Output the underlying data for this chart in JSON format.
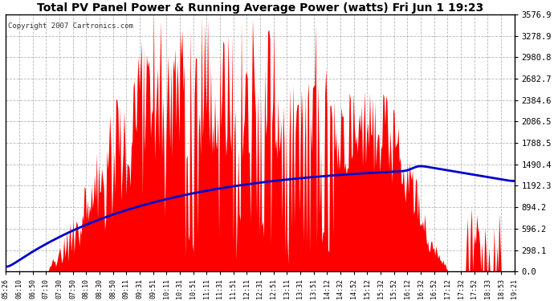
{
  "title": "Total PV Panel Power & Running Average Power (watts) Fri Jun 1 19:23",
  "copyright": "Copyright 2007 Cartronics.com",
  "background_color": "#ffffff",
  "plot_bg_color": "#ffffff",
  "grid_color": "#b0b0b0",
  "bar_color": "#ff0000",
  "line_color": "#0000cc",
  "yticks": [
    0.0,
    298.1,
    596.2,
    894.2,
    1192.3,
    1490.4,
    1788.5,
    2086.5,
    2384.6,
    2682.7,
    2980.8,
    3278.9,
    3576.9
  ],
  "ymax": 3576.9,
  "ymin": 0.0,
  "xtick_labels": [
    "05:26",
    "06:10",
    "06:50",
    "07:10",
    "07:30",
    "07:50",
    "08:10",
    "08:30",
    "08:50",
    "09:11",
    "09:31",
    "09:51",
    "10:11",
    "10:31",
    "10:51",
    "11:11",
    "11:31",
    "11:51",
    "12:11",
    "12:31",
    "12:51",
    "13:11",
    "13:31",
    "13:51",
    "14:12",
    "14:32",
    "14:52",
    "15:12",
    "15:32",
    "15:52",
    "16:12",
    "16:32",
    "16:52",
    "17:12",
    "17:32",
    "17:52",
    "18:33",
    "18:53",
    "19:21"
  ]
}
